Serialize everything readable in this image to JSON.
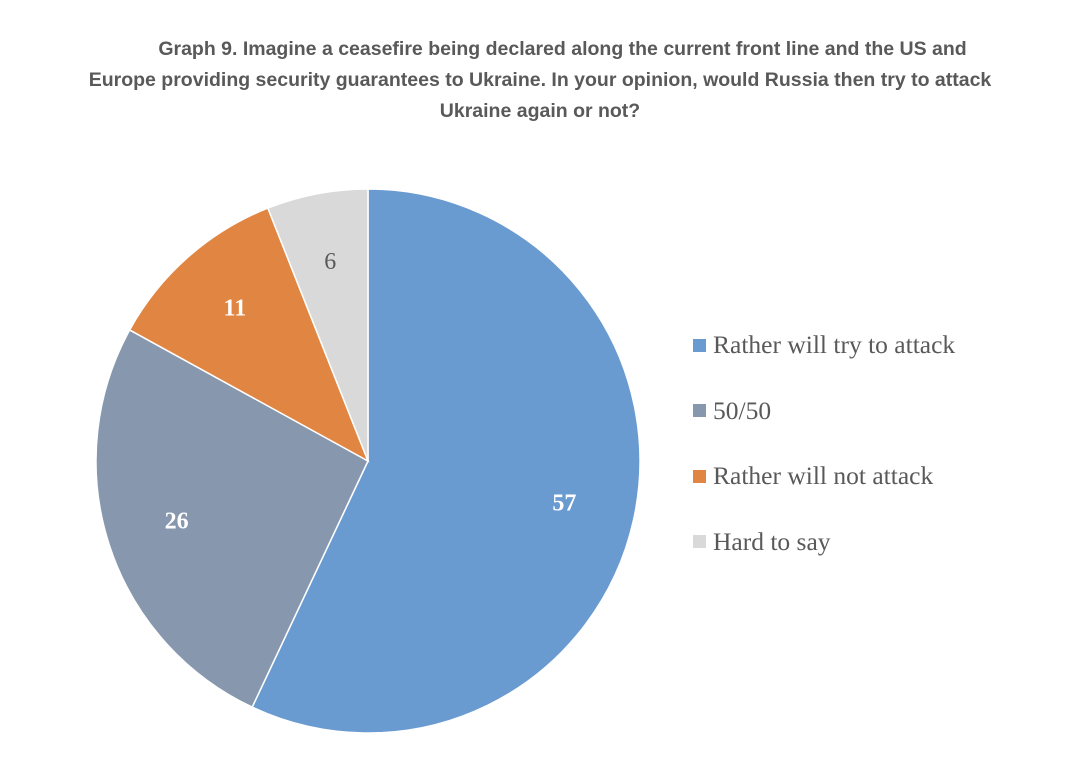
{
  "title": {
    "line1": "Graph 9. Imagine a ceasefire being declared along the current front line and the US and",
    "line2": "Europe providing security guarantees to Ukraine. In your opinion, would Russia then try to attack",
    "line3": "Ukraine again or not?"
  },
  "chart_data": {
    "type": "pie",
    "title": "Graph 9. Imagine a ceasefire being declared along the current front line and the US and Europe providing security guarantees to Ukraine. In your opinion, would Russia then try to attack Ukraine again or not?",
    "legend_position": "right",
    "start": "top, clockwise",
    "slices": [
      {
        "label": "Rather will try to attack",
        "value": 57,
        "color": "#699bd1",
        "label_color": "#ffffff"
      },
      {
        "label": "50/50",
        "value": 26,
        "color": "#8697ae",
        "label_color": "#ffffff"
      },
      {
        "label": "Rather will not attack",
        "value": 11,
        "color": "#e08542",
        "label_color": "#ffffff"
      },
      {
        "label": "Hard to say",
        "value": 6,
        "color": "#d9d9d9",
        "label_color": "#595959"
      }
    ]
  }
}
